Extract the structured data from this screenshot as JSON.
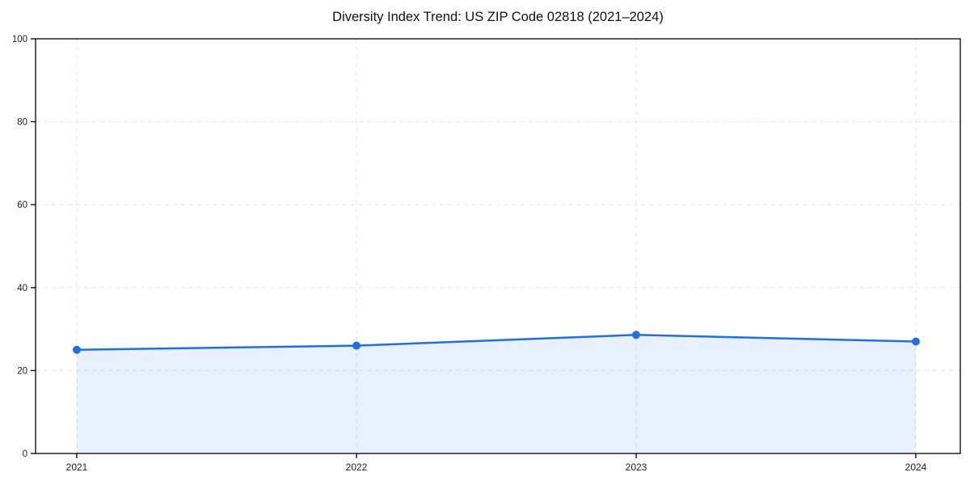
{
  "chart_data": {
    "type": "area",
    "title": "Diversity Index Trend: US ZIP Code 02818 (2021–2024)",
    "categories": [
      "2021",
      "2022",
      "2023",
      "2024"
    ],
    "series": [
      {
        "name": "Diversity Index",
        "values": [
          25,
          26,
          28.6,
          27
        ]
      }
    ],
    "xlabel": "",
    "ylabel": "",
    "ylim": [
      0,
      100
    ],
    "yticks": [
      0,
      20,
      40,
      60,
      80,
      100
    ],
    "grid": true,
    "grid_style": "dashed",
    "legend": "none",
    "markers": true
  },
  "colors": {
    "line": "#1f6fe0",
    "marker": "#1f6fe0",
    "fill": "#1f6fe0",
    "fill_opacity": 0.1,
    "grid": "#e3e3e3",
    "axis": "#000000",
    "tick_text": "#1c1c1c",
    "title_text": "#111111",
    "background": "#ffffff"
  }
}
